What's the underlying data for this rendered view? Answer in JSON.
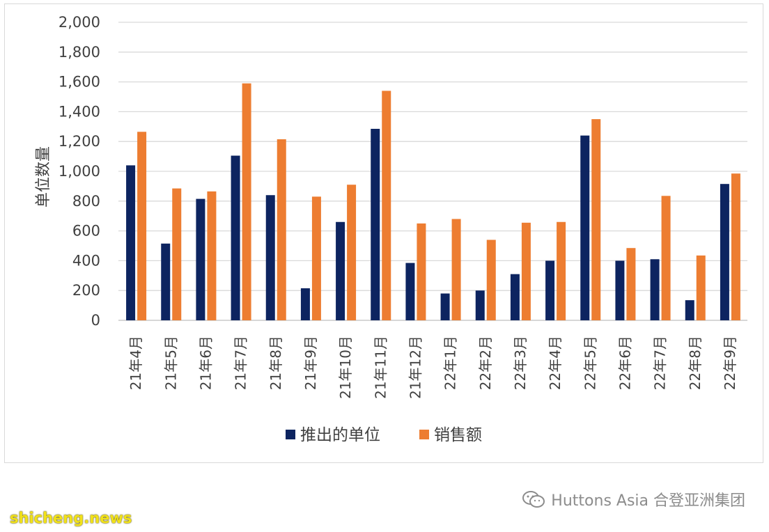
{
  "chart_data": {
    "type": "bar",
    "title": "",
    "ylabel": "单位数量",
    "xlabel": "",
    "ylim": [
      0,
      2000
    ],
    "yticks": [
      "0",
      "200",
      "400",
      "600",
      "800",
      "1,000",
      "1,200",
      "1,400",
      "1,600",
      "1,800",
      "2,000"
    ],
    "ytick_values": [
      0,
      200,
      400,
      600,
      800,
      1000,
      1200,
      1400,
      1600,
      1800,
      2000
    ],
    "grid": true,
    "legend_position": "bottom",
    "categories": [
      "21年4月",
      "21年5月",
      "21年6月",
      "21年7月",
      "21年8月",
      "21年9月",
      "21年10月",
      "21年11月",
      "21年12月",
      "22年1月",
      "22年2月",
      "22年3月",
      "22年4月",
      "22年5月",
      "22年6月",
      "22年7月",
      "22年8月",
      "22年9月"
    ],
    "series": [
      {
        "name": "推出的单位",
        "color": "#0d2460",
        "values": [
          1040,
          515,
          815,
          1105,
          840,
          215,
          660,
          1285,
          385,
          180,
          200,
          310,
          400,
          1240,
          400,
          410,
          135,
          915
        ]
      },
      {
        "name": "销售额",
        "color": "#ed7d31",
        "values": [
          1265,
          885,
          865,
          1590,
          1215,
          830,
          910,
          1540,
          650,
          680,
          540,
          655,
          660,
          1350,
          485,
          835,
          435,
          985
        ]
      }
    ]
  },
  "watermark": {
    "text": "Huttons Asia 合登亚洲集团",
    "icon": "wechat-icon"
  },
  "site_tag": "shicheng.news"
}
